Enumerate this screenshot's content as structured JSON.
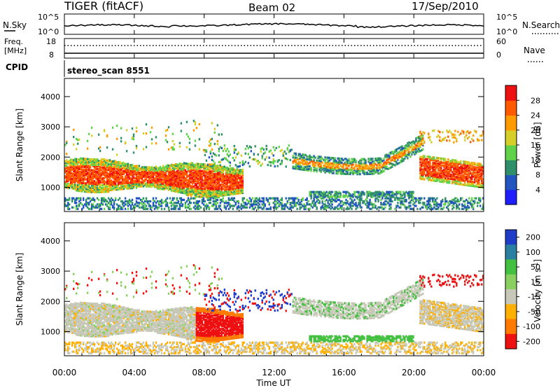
{
  "header": {
    "station": "TIGER (fitACF)",
    "beam": "Beam 02",
    "date": "17/Sep/2010"
  },
  "nsky_panel": {
    "left_label": "N.Sky",
    "right_label": "N.Search",
    "left_ticks": [
      "10^5",
      "10^0"
    ],
    "right_ticks": [
      "10^5",
      "10^0"
    ]
  },
  "freq_panel": {
    "left_label_1": "Freq.",
    "left_label_2": "[MHz]",
    "right_label": "Nave",
    "left_ticks": [
      "18",
      "8"
    ],
    "right_ticks": [
      "60",
      "0"
    ]
  },
  "cpid_panel": {
    "label": "CPID",
    "text": "stereo_scan 8551"
  },
  "chart_data": [
    {
      "type": "heatmap",
      "name": "Power",
      "ylabel": "Slant Range [km]",
      "ylim": [
        200,
        4600
      ],
      "yticks": [
        "1000",
        "2000",
        "3000",
        "4000"
      ],
      "colorbar_label": "Power [dB]",
      "colorbar_ticks": [
        "4",
        "8",
        "12",
        "16",
        "20",
        "24",
        "28"
      ],
      "colors": [
        "#1e1eff",
        "#2255c0",
        "#2e8f6a",
        "#5fd24a",
        "#d6cf2a",
        "#ff9a00",
        "#ff5a00",
        "#ee1111"
      ],
      "range": [
        0,
        32
      ]
    },
    {
      "type": "heatmap",
      "name": "Velocity",
      "ylabel": "Slant Range [km]",
      "ylim": [
        200,
        4600
      ],
      "yticks": [
        "1000",
        "2000",
        "3000",
        "4000"
      ],
      "colorbar_label": "Velocity [m s-1]",
      "colorbar_label_main": "Velocity [m s",
      "colorbar_label_sup": "-1",
      "colorbar_label_end": "]",
      "colorbar_ticks": [
        "200",
        "100",
        "50",
        "15",
        "-15",
        "-50",
        "-100",
        "-200"
      ],
      "colors": [
        "#1e3cc8",
        "#2a80a0",
        "#44c040",
        "#8ad060",
        "#c8c8b8",
        "#ffb000",
        "#ff7a00",
        "#ee1111"
      ],
      "ground_scatter_color": "#c8c8b8"
    }
  ],
  "x_axis": {
    "xlabel": "Time UT",
    "ticks": [
      "00:00",
      "04:00",
      "08:00",
      "12:00",
      "16:00",
      "20:00",
      "00:00"
    ]
  }
}
